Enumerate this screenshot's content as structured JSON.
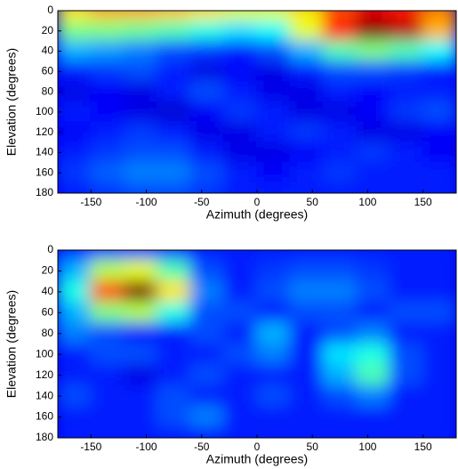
{
  "chart_data": [
    {
      "type": "heatmap",
      "xlabel": "Azimuth (degrees)",
      "ylabel": "Elevation (degrees)",
      "colormap": "jet",
      "zlim": [
        0,
        1
      ],
      "xlim": [
        -180,
        180
      ],
      "ylim": [
        0,
        180
      ],
      "y_reversed": true,
      "xticks": [
        -150,
        -100,
        -50,
        0,
        50,
        100,
        150
      ],
      "yticks": [
        0,
        20,
        40,
        60,
        80,
        100,
        120,
        140,
        160,
        180
      ],
      "x": [
        -165,
        -135,
        -105,
        -75,
        -45,
        -15,
        15,
        45,
        75,
        105,
        135,
        165
      ],
      "y": [
        0,
        20,
        40,
        60,
        80,
        100,
        120,
        140,
        160,
        180
      ],
      "z": [
        [
          0.65,
          0.7,
          0.7,
          0.68,
          0.65,
          0.6,
          0.6,
          0.65,
          0.8,
          0.9,
          0.85,
          0.75
        ],
        [
          0.5,
          0.5,
          0.48,
          0.45,
          0.4,
          0.35,
          0.38,
          0.6,
          0.85,
          1.0,
          0.95,
          0.7
        ],
        [
          0.3,
          0.28,
          0.25,
          0.2,
          0.18,
          0.15,
          0.2,
          0.3,
          0.45,
          0.5,
          0.45,
          0.38
        ],
        [
          0.15,
          0.18,
          0.2,
          0.15,
          0.1,
          0.12,
          0.1,
          0.15,
          0.2,
          0.2,
          0.18,
          0.15
        ],
        [
          0.1,
          0.12,
          0.1,
          0.15,
          0.2,
          0.15,
          0.1,
          0.1,
          0.15,
          0.12,
          0.15,
          0.15
        ],
        [
          0.15,
          0.12,
          0.1,
          0.08,
          0.12,
          0.18,
          0.15,
          0.1,
          0.1,
          0.12,
          0.18,
          0.2
        ],
        [
          0.12,
          0.15,
          0.18,
          0.15,
          0.1,
          0.1,
          0.15,
          0.18,
          0.15,
          0.1,
          0.1,
          0.12
        ],
        [
          0.15,
          0.18,
          0.2,
          0.2,
          0.15,
          0.1,
          0.1,
          0.12,
          0.15,
          0.18,
          0.15,
          0.12
        ],
        [
          0.18,
          0.22,
          0.25,
          0.25,
          0.2,
          0.15,
          0.12,
          0.15,
          0.18,
          0.15,
          0.15,
          0.15
        ],
        [
          0.15,
          0.18,
          0.2,
          0.2,
          0.18,
          0.15,
          0.15,
          0.15,
          0.15,
          0.15,
          0.15,
          0.15
        ]
      ]
    },
    {
      "type": "heatmap",
      "xlabel": "Azimuth (degrees)",
      "ylabel": "Elevation (degrees)",
      "colormap": "jet",
      "zlim": [
        0,
        1
      ],
      "xlim": [
        -180,
        180
      ],
      "ylim": [
        0,
        180
      ],
      "y_reversed": true,
      "xticks": [
        -150,
        -100,
        -50,
        0,
        50,
        100,
        150
      ],
      "yticks": [
        0,
        20,
        40,
        60,
        80,
        100,
        120,
        140,
        160,
        180
      ],
      "x": [
        -165,
        -135,
        -105,
        -75,
        -45,
        -15,
        15,
        45,
        75,
        105,
        135,
        165
      ],
      "y": [
        0,
        20,
        40,
        60,
        80,
        100,
        120,
        140,
        160,
        180
      ],
      "z": [
        [
          0.15,
          0.2,
          0.2,
          0.18,
          0.15,
          0.15,
          0.15,
          0.15,
          0.15,
          0.15,
          0.15,
          0.15
        ],
        [
          0.3,
          0.55,
          0.6,
          0.45,
          0.2,
          0.15,
          0.18,
          0.2,
          0.2,
          0.18,
          0.15,
          0.15
        ],
        [
          0.4,
          0.8,
          1.0,
          0.65,
          0.25,
          0.15,
          0.2,
          0.25,
          0.25,
          0.2,
          0.15,
          0.15
        ],
        [
          0.3,
          0.5,
          0.55,
          0.4,
          0.2,
          0.2,
          0.15,
          0.2,
          0.2,
          0.15,
          0.2,
          0.2
        ],
        [
          0.25,
          0.2,
          0.15,
          0.15,
          0.2,
          0.15,
          0.3,
          0.15,
          0.2,
          0.25,
          0.15,
          0.15
        ],
        [
          0.15,
          0.2,
          0.2,
          0.15,
          0.15,
          0.2,
          0.25,
          0.15,
          0.35,
          0.4,
          0.2,
          0.15
        ],
        [
          0.15,
          0.15,
          0.1,
          0.15,
          0.2,
          0.15,
          0.15,
          0.15,
          0.3,
          0.45,
          0.2,
          0.15
        ],
        [
          0.2,
          0.15,
          0.15,
          0.2,
          0.15,
          0.15,
          0.2,
          0.15,
          0.2,
          0.25,
          0.15,
          0.15
        ],
        [
          0.15,
          0.15,
          0.15,
          0.2,
          0.25,
          0.15,
          0.15,
          0.15,
          0.15,
          0.15,
          0.15,
          0.15
        ],
        [
          0.15,
          0.15,
          0.15,
          0.15,
          0.15,
          0.15,
          0.15,
          0.15,
          0.15,
          0.15,
          0.15,
          0.15
        ]
      ]
    }
  ]
}
